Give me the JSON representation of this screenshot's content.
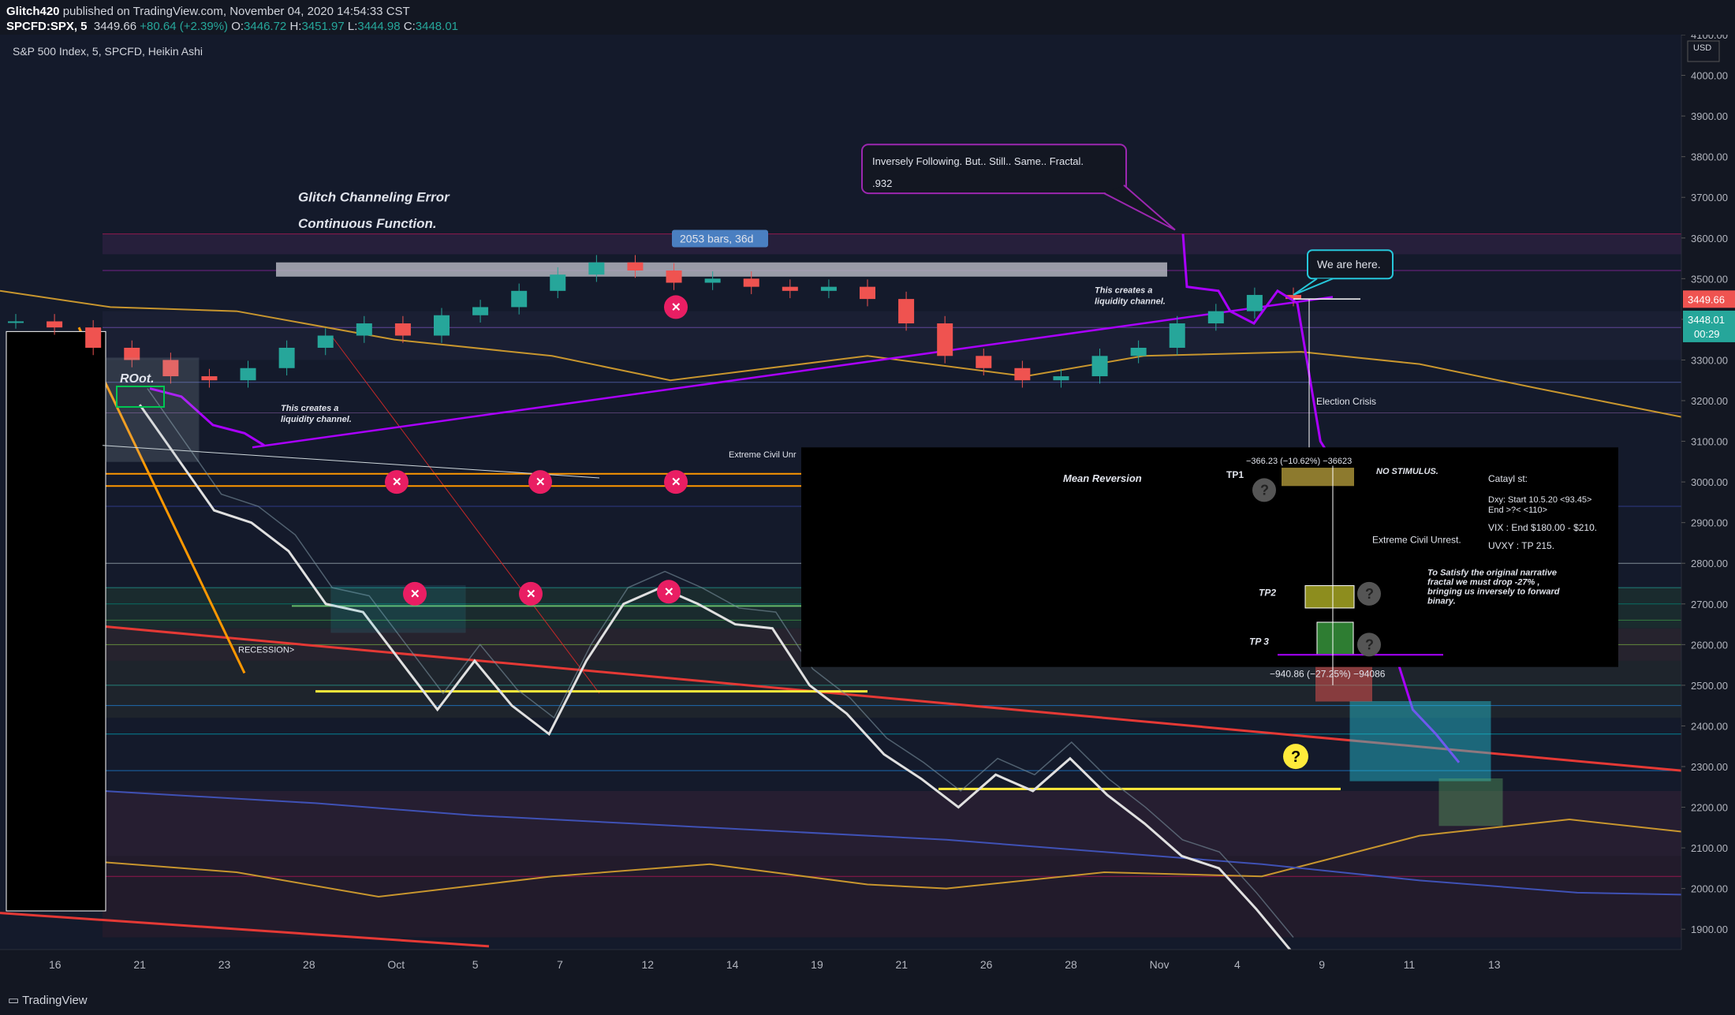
{
  "header": {
    "author": "Glitch420",
    "published_text": " published on TradingView.com, November 04, 2020 14:54:33 CST",
    "symbol": "SPCFD:SPX, 5",
    "last": "3449.66",
    "change": "+80.64 (+2.39%)",
    "o_label": "O:",
    "o": "3446.72",
    "h_label": "H:",
    "h": "3451.97",
    "l_label": "L:",
    "l": "3444.98",
    "c_label": "C:",
    "c": "3448.01"
  },
  "legend": "S&P 500 Index, 5, SPCFD, Heikin Ashi",
  "currency": "USD",
  "footer": {
    "brand": "TradingView"
  },
  "annotations": {
    "glitch_title": "Glitch Channeling Error",
    "glitch_sub": "Continuous Function.",
    "bars_badge": "2053 bars, 36d",
    "callout_line1": "Inversely Following. But.. Still.. Same.. Fractal.",
    "callout_line2": ".932",
    "we_are_here": "We are here.",
    "liquidity_left": "This creates a\nliquidity channel.",
    "liquidity_right": "This creates a\nliquidity channel.",
    "root": "ROot.",
    "recession": "RECESSION>",
    "extreme_left": "Extreme Civil Unr",
    "election": "Election Crisis",
    "mean_reversion": "Mean Reversion",
    "tp1": "TP1",
    "tp1_measure": "−366.23 (−10.62%) −36623",
    "no_stimulus": "NO STIMULUS.",
    "extreme_civil": "Extreme Civil Unrest.",
    "catalyst_title": "Catayl st:",
    "catalyst_1": "Dxy: Start 10.5.20 <93.45>",
    "catalyst_2": "End >?< <110>",
    "catalyst_3": "VIX : End $180.00 - $210.",
    "catalyst_4": "UVXY : TP 215.",
    "narrative": "To Satisfy the original narrative\nfractal we must drop -27% ,\nbringing us inversely to forward\nbinary.",
    "tp2": "TP2",
    "tp3": "TP 3",
    "tp3_measure": "−940.86 (−27.25%) −94086",
    "question": "?"
  },
  "price_labels": {
    "current": "3449.66",
    "close": "3448.01",
    "countdown": "00:29"
  },
  "colors": {
    "background": "#131722",
    "purple": "#9c27b0",
    "gold": "#c8962e",
    "red_line": "#e53935",
    "yellow": "#ffeb3b",
    "teal": "#26c6da",
    "pink_x": "#e91e63",
    "price_up": "#26a69a",
    "price_down": "#ef5350"
  },
  "chart_data": {
    "type": "line",
    "title": "S&P 500 Index, 5, SPCFD, Heikin Ashi",
    "ylabel": "USD",
    "ylim": [
      1850,
      4100
    ],
    "y_ticks": [
      1900,
      2000,
      2100,
      2200,
      2300,
      2400,
      2500,
      2600,
      2700,
      2800,
      2900,
      3000,
      3100,
      3200,
      3300,
      3400,
      3500,
      3600,
      3700,
      3800,
      3900,
      4000,
      4100
    ],
    "x_ticks": [
      "16",
      "21",
      "23",
      "28",
      "Oct",
      "5",
      "7",
      "12",
      "14",
      "19",
      "21",
      "26",
      "28",
      "Nov",
      "4",
      "9",
      "11",
      "13"
    ],
    "series": [
      {
        "type": "candles",
        "points": [
          [
            0,
            3395
          ],
          [
            1,
            3380
          ],
          [
            2,
            3330
          ],
          [
            3,
            3300
          ],
          [
            4,
            3260
          ],
          [
            5,
            3250
          ],
          [
            6,
            3280
          ],
          [
            7,
            3330
          ],
          [
            8,
            3360
          ],
          [
            9,
            3390
          ],
          [
            10,
            3360
          ],
          [
            11,
            3410
          ],
          [
            12,
            3430
          ],
          [
            13,
            3470
          ],
          [
            14,
            3510
          ],
          [
            15,
            3540
          ],
          [
            16,
            3520
          ],
          [
            17,
            3490
          ],
          [
            18,
            3500
          ],
          [
            19,
            3480
          ],
          [
            20,
            3470
          ],
          [
            21,
            3480
          ],
          [
            22,
            3450
          ],
          [
            23,
            3390
          ],
          [
            24,
            3310
          ],
          [
            25,
            3280
          ],
          [
            26,
            3250
          ],
          [
            27,
            3260
          ],
          [
            28,
            3310
          ],
          [
            29,
            3330
          ],
          [
            30,
            3390
          ],
          [
            31,
            3420
          ],
          [
            32,
            3460
          ],
          [
            33,
            3450
          ]
        ]
      },
      {
        "type": "overlay",
        "points": [
          [
            1,
            3190
          ],
          [
            2,
            3060
          ],
          [
            3,
            2930
          ],
          [
            4,
            2900
          ],
          [
            5,
            2830
          ],
          [
            6,
            2700
          ],
          [
            7,
            2680
          ],
          [
            8,
            2560
          ],
          [
            9,
            2440
          ],
          [
            10,
            2560
          ],
          [
            11,
            2450
          ],
          [
            12,
            2380
          ],
          [
            13,
            2560
          ],
          [
            14,
            2700
          ],
          [
            15,
            2740
          ],
          [
            16,
            2700
          ],
          [
            17,
            2650
          ],
          [
            18,
            2640
          ],
          [
            19,
            2500
          ],
          [
            20,
            2430
          ],
          [
            21,
            2330
          ],
          [
            22,
            2270
          ],
          [
            23,
            2200
          ],
          [
            24,
            2280
          ],
          [
            25,
            2240
          ],
          [
            26,
            2320
          ],
          [
            27,
            2230
          ],
          [
            28,
            2160
          ],
          [
            29,
            2080
          ],
          [
            30,
            2050
          ],
          [
            31,
            1950
          ],
          [
            32,
            1840
          ]
        ]
      },
      {
        "type": "projection",
        "points": [
          [
            34,
            3440
          ],
          [
            35,
            3100
          ],
          [
            36,
            3010
          ],
          [
            37,
            2730
          ],
          [
            38,
            2620
          ],
          [
            39,
            2440
          ],
          [
            40,
            2380
          ],
          [
            41,
            2310
          ]
        ]
      }
    ]
  }
}
